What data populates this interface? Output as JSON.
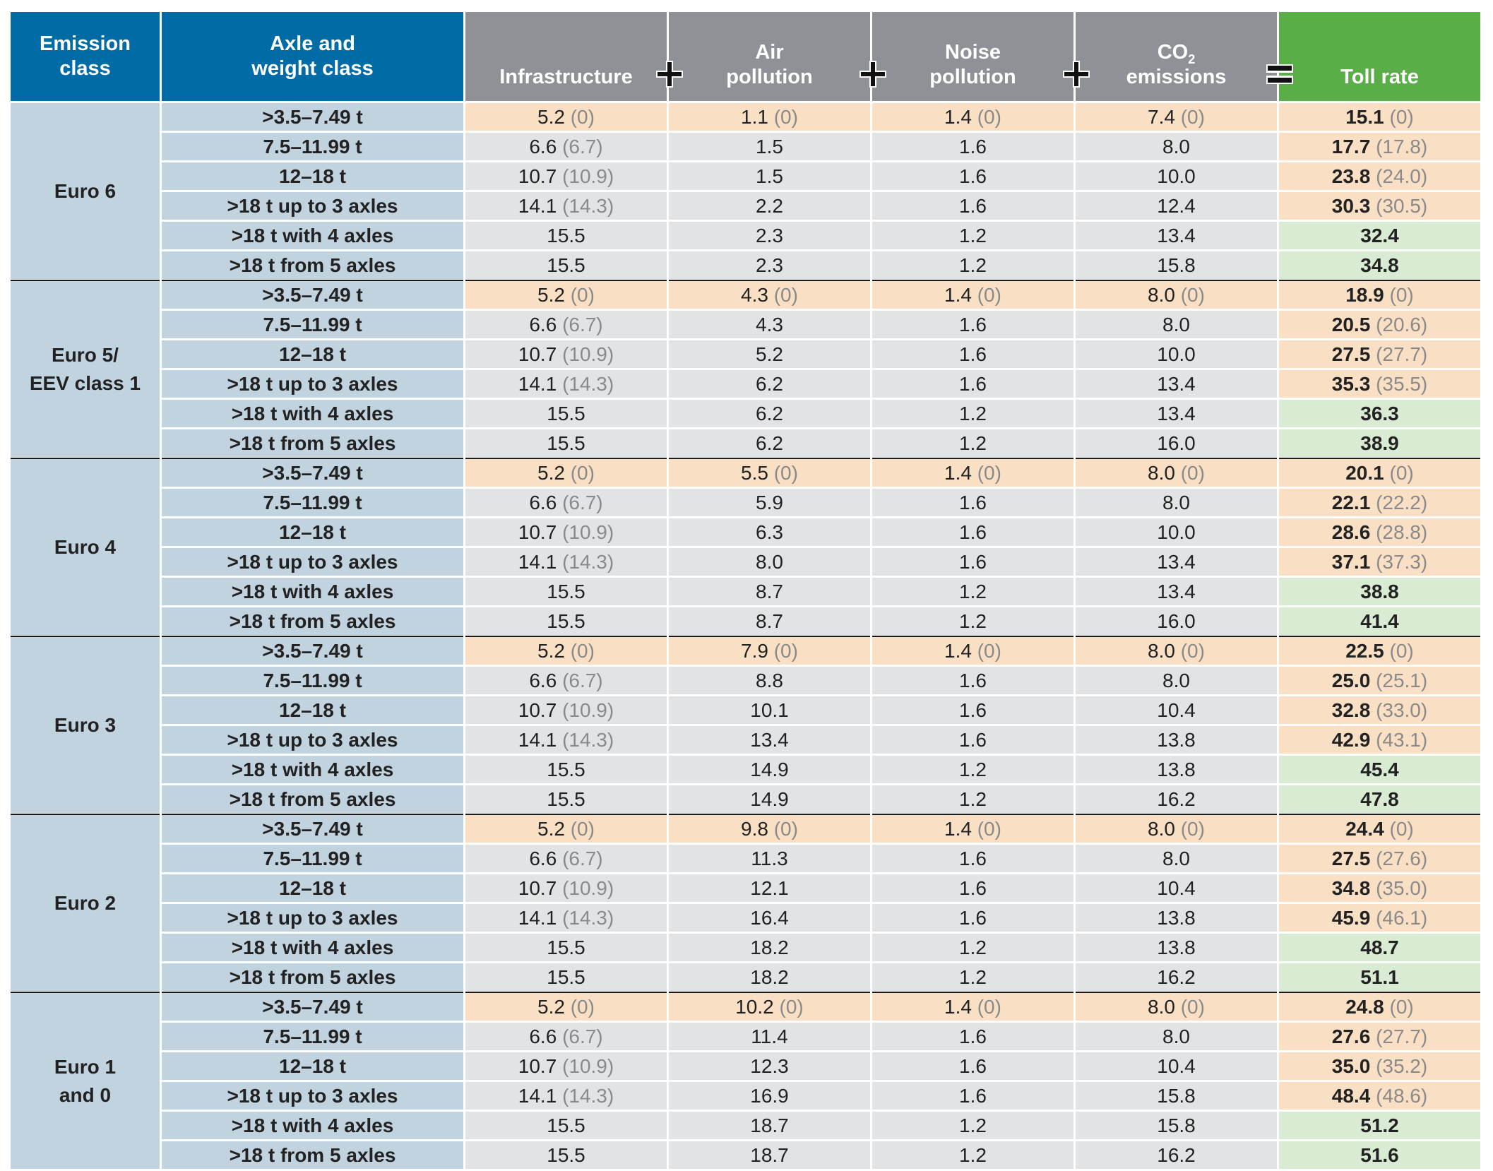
{
  "header": {
    "emission_class": [
      "Emission",
      "class"
    ],
    "axle_weight": [
      "Axle and",
      "weight class"
    ],
    "infrastructure": "Infrastructure",
    "air": [
      "Air",
      "pollution"
    ],
    "noise": [
      "Noise",
      "pollution"
    ],
    "co2": [
      "CO",
      "2",
      "emissions"
    ],
    "toll": "Toll rate",
    "operators": [
      "plus-icon",
      "plus-icon",
      "plus-icon",
      "equals-icon"
    ]
  },
  "colors": {
    "header_blue": "#006ba4",
    "header_gray": "#8e9296",
    "header_green": "#5aae48",
    "label_blue": "#c2d3e0",
    "highlight_orange": "#f9dfc4",
    "cell_gray": "#e1e3e5",
    "cell_green": "#d9ecd3"
  },
  "groups": [
    {
      "label": [
        "Euro 6"
      ],
      "rows": [
        {
          "axle": ">3.5–7.49 t",
          "infra": "5.2",
          "infra_p": "(0)",
          "air": "1.1",
          "air_p": "(0)",
          "noise": "1.4",
          "noise_p": "(0)",
          "co2": "7.4",
          "co2_p": "(0)",
          "toll": "15.1",
          "toll_p": "(0)",
          "hl": true
        },
        {
          "axle": "7.5–11.99 t",
          "infra": "6.6",
          "infra_p": "(6.7)",
          "air": "1.5",
          "air_p": "",
          "noise": "1.6",
          "noise_p": "",
          "co2": "8.0",
          "co2_p": "",
          "toll": "17.7",
          "toll_p": "(17.8)",
          "hl": false
        },
        {
          "axle": "12–18 t",
          "infra": "10.7",
          "infra_p": "(10.9)",
          "air": "1.5",
          "air_p": "",
          "noise": "1.6",
          "noise_p": "",
          "co2": "10.0",
          "co2_p": "",
          "toll": "23.8",
          "toll_p": "(24.0)",
          "hl": false
        },
        {
          "axle": ">18 t up to 3 axles",
          "infra": "14.1",
          "infra_p": "(14.3)",
          "air": "2.2",
          "air_p": "",
          "noise": "1.6",
          "noise_p": "",
          "co2": "12.4",
          "co2_p": "",
          "toll": "30.3",
          "toll_p": "(30.5)",
          "hl": false
        },
        {
          "axle": ">18 t with 4 axles",
          "infra": "15.5",
          "infra_p": "",
          "air": "2.3",
          "air_p": "",
          "noise": "1.2",
          "noise_p": "",
          "co2": "13.4",
          "co2_p": "",
          "toll": "32.4",
          "toll_p": "",
          "hl": false
        },
        {
          "axle": ">18 t from 5 axles",
          "infra": "15.5",
          "infra_p": "",
          "air": "2.3",
          "air_p": "",
          "noise": "1.2",
          "noise_p": "",
          "co2": "15.8",
          "co2_p": "",
          "toll": "34.8",
          "toll_p": "",
          "hl": false
        }
      ]
    },
    {
      "label": [
        "Euro 5/",
        "EEV class 1"
      ],
      "rows": [
        {
          "axle": ">3.5–7.49 t",
          "infra": "5.2",
          "infra_p": "(0)",
          "air": "4.3",
          "air_p": "(0)",
          "noise": "1.4",
          "noise_p": "(0)",
          "co2": "8.0",
          "co2_p": "(0)",
          "toll": "18.9",
          "toll_p": "(0)",
          "hl": true
        },
        {
          "axle": "7.5–11.99 t",
          "infra": "6.6",
          "infra_p": "(6.7)",
          "air": "4.3",
          "air_p": "",
          "noise": "1.6",
          "noise_p": "",
          "co2": "8.0",
          "co2_p": "",
          "toll": "20.5",
          "toll_p": "(20.6)",
          "hl": false
        },
        {
          "axle": "12–18 t",
          "infra": "10.7",
          "infra_p": "(10.9)",
          "air": "5.2",
          "air_p": "",
          "noise": "1.6",
          "noise_p": "",
          "co2": "10.0",
          "co2_p": "",
          "toll": "27.5",
          "toll_p": "(27.7)",
          "hl": false
        },
        {
          "axle": ">18 t up to 3 axles",
          "infra": "14.1",
          "infra_p": "(14.3)",
          "air": "6.2",
          "air_p": "",
          "noise": "1.6",
          "noise_p": "",
          "co2": "13.4",
          "co2_p": "",
          "toll": "35.3",
          "toll_p": "(35.5)",
          "hl": false
        },
        {
          "axle": ">18 t with 4 axles",
          "infra": "15.5",
          "infra_p": "",
          "air": "6.2",
          "air_p": "",
          "noise": "1.2",
          "noise_p": "",
          "co2": "13.4",
          "co2_p": "",
          "toll": "36.3",
          "toll_p": "",
          "hl": false
        },
        {
          "axle": ">18 t from 5 axles",
          "infra": "15.5",
          "infra_p": "",
          "air": "6.2",
          "air_p": "",
          "noise": "1.2",
          "noise_p": "",
          "co2": "16.0",
          "co2_p": "",
          "toll": "38.9",
          "toll_p": "",
          "hl": false
        }
      ]
    },
    {
      "label": [
        "Euro 4"
      ],
      "rows": [
        {
          "axle": ">3.5–7.49 t",
          "infra": "5.2",
          "infra_p": "(0)",
          "air": "5.5",
          "air_p": "(0)",
          "noise": "1.4",
          "noise_p": "(0)",
          "co2": "8.0",
          "co2_p": "(0)",
          "toll": "20.1",
          "toll_p": "(0)",
          "hl": true
        },
        {
          "axle": "7.5–11.99 t",
          "infra": "6.6",
          "infra_p": "(6.7)",
          "air": "5.9",
          "air_p": "",
          "noise": "1.6",
          "noise_p": "",
          "co2": "8.0",
          "co2_p": "",
          "toll": "22.1",
          "toll_p": "(22.2)",
          "hl": false
        },
        {
          "axle": "12–18 t",
          "infra": "10.7",
          "infra_p": "(10.9)",
          "air": "6.3",
          "air_p": "",
          "noise": "1.6",
          "noise_p": "",
          "co2": "10.0",
          "co2_p": "",
          "toll": "28.6",
          "toll_p": "(28.8)",
          "hl": false
        },
        {
          "axle": ">18 t up to 3 axles",
          "infra": "14.1",
          "infra_p": "(14.3)",
          "air": "8.0",
          "air_p": "",
          "noise": "1.6",
          "noise_p": "",
          "co2": "13.4",
          "co2_p": "",
          "toll": "37.1",
          "toll_p": "(37.3)",
          "hl": false
        },
        {
          "axle": ">18 t with 4 axles",
          "infra": "15.5",
          "infra_p": "",
          "air": "8.7",
          "air_p": "",
          "noise": "1.2",
          "noise_p": "",
          "co2": "13.4",
          "co2_p": "",
          "toll": "38.8",
          "toll_p": "",
          "hl": false
        },
        {
          "axle": ">18 t from 5 axles",
          "infra": "15.5",
          "infra_p": "",
          "air": "8.7",
          "air_p": "",
          "noise": "1.2",
          "noise_p": "",
          "co2": "16.0",
          "co2_p": "",
          "toll": "41.4",
          "toll_p": "",
          "hl": false
        }
      ]
    },
    {
      "label": [
        "Euro 3"
      ],
      "rows": [
        {
          "axle": ">3.5–7.49 t",
          "infra": "5.2",
          "infra_p": "(0)",
          "air": "7.9",
          "air_p": "(0)",
          "noise": "1.4",
          "noise_p": "(0)",
          "co2": "8.0",
          "co2_p": "(0)",
          "toll": "22.5",
          "toll_p": "(0)",
          "hl": true
        },
        {
          "axle": "7.5–11.99 t",
          "infra": "6.6",
          "infra_p": "(6.7)",
          "air": "8.8",
          "air_p": "",
          "noise": "1.6",
          "noise_p": "",
          "co2": "8.0",
          "co2_p": "",
          "toll": "25.0",
          "toll_p": "(25.1)",
          "hl": false
        },
        {
          "axle": "12–18 t",
          "infra": "10.7",
          "infra_p": "(10.9)",
          "air": "10.1",
          "air_p": "",
          "noise": "1.6",
          "noise_p": "",
          "co2": "10.4",
          "co2_p": "",
          "toll": "32.8",
          "toll_p": "(33.0)",
          "hl": false
        },
        {
          "axle": ">18 t up to 3 axles",
          "infra": "14.1",
          "infra_p": "(14.3)",
          "air": "13.4",
          "air_p": "",
          "noise": "1.6",
          "noise_p": "",
          "co2": "13.8",
          "co2_p": "",
          "toll": "42.9",
          "toll_p": "(43.1)",
          "hl": false
        },
        {
          "axle": ">18 t with 4 axles",
          "infra": "15.5",
          "infra_p": "",
          "air": "14.9",
          "air_p": "",
          "noise": "1.2",
          "noise_p": "",
          "co2": "13.8",
          "co2_p": "",
          "toll": "45.4",
          "toll_p": "",
          "hl": false
        },
        {
          "axle": ">18 t from 5 axles",
          "infra": "15.5",
          "infra_p": "",
          "air": "14.9",
          "air_p": "",
          "noise": "1.2",
          "noise_p": "",
          "co2": "16.2",
          "co2_p": "",
          "toll": "47.8",
          "toll_p": "",
          "hl": false
        }
      ]
    },
    {
      "label": [
        "Euro 2"
      ],
      "rows": [
        {
          "axle": ">3.5–7.49 t",
          "infra": "5.2",
          "infra_p": "(0)",
          "air": "9.8",
          "air_p": "(0)",
          "noise": "1.4",
          "noise_p": "(0)",
          "co2": "8.0",
          "co2_p": "(0)",
          "toll": "24.4",
          "toll_p": "(0)",
          "hl": true
        },
        {
          "axle": "7.5–11.99 t",
          "infra": "6.6",
          "infra_p": "(6.7)",
          "air": "11.3",
          "air_p": "",
          "noise": "1.6",
          "noise_p": "",
          "co2": "8.0",
          "co2_p": "",
          "toll": "27.5",
          "toll_p": "(27.6)",
          "hl": false
        },
        {
          "axle": "12–18 t",
          "infra": "10.7",
          "infra_p": "(10.9)",
          "air": "12.1",
          "air_p": "",
          "noise": "1.6",
          "noise_p": "",
          "co2": "10.4",
          "co2_p": "",
          "toll": "34.8",
          "toll_p": "(35.0)",
          "hl": false
        },
        {
          "axle": ">18 t up to 3 axles",
          "infra": "14.1",
          "infra_p": "(14.3)",
          "air": "16.4",
          "air_p": "",
          "noise": "1.6",
          "noise_p": "",
          "co2": "13.8",
          "co2_p": "",
          "toll": "45.9",
          "toll_p": "(46.1)",
          "hl": false
        },
        {
          "axle": ">18 t with 4 axles",
          "infra": "15.5",
          "infra_p": "",
          "air": "18.2",
          "air_p": "",
          "noise": "1.2",
          "noise_p": "",
          "co2": "13.8",
          "co2_p": "",
          "toll": "48.7",
          "toll_p": "",
          "hl": false
        },
        {
          "axle": ">18 t from 5 axles",
          "infra": "15.5",
          "infra_p": "",
          "air": "18.2",
          "air_p": "",
          "noise": "1.2",
          "noise_p": "",
          "co2": "16.2",
          "co2_p": "",
          "toll": "51.1",
          "toll_p": "",
          "hl": false
        }
      ]
    },
    {
      "label": [
        "Euro 1",
        "and 0"
      ],
      "rows": [
        {
          "axle": ">3.5–7.49 t",
          "infra": "5.2",
          "infra_p": "(0)",
          "air": "10.2",
          "air_p": "(0)",
          "noise": "1.4",
          "noise_p": "(0)",
          "co2": "8.0",
          "co2_p": "(0)",
          "toll": "24.8",
          "toll_p": "(0)",
          "hl": true
        },
        {
          "axle": "7.5–11.99 t",
          "infra": "6.6",
          "infra_p": "(6.7)",
          "air": "11.4",
          "air_p": "",
          "noise": "1.6",
          "noise_p": "",
          "co2": "8.0",
          "co2_p": "",
          "toll": "27.6",
          "toll_p": "(27.7)",
          "hl": false
        },
        {
          "axle": "12–18 t",
          "infra": "10.7",
          "infra_p": "(10.9)",
          "air": "12.3",
          "air_p": "",
          "noise": "1.6",
          "noise_p": "",
          "co2": "10.4",
          "co2_p": "",
          "toll": "35.0",
          "toll_p": "(35.2)",
          "hl": false
        },
        {
          "axle": ">18 t up to 3 axles",
          "infra": "14.1",
          "infra_p": "(14.3)",
          "air": "16.9",
          "air_p": "",
          "noise": "1.6",
          "noise_p": "",
          "co2": "15.8",
          "co2_p": "",
          "toll": "48.4",
          "toll_p": "(48.6)",
          "hl": false
        },
        {
          "axle": ">18 t with 4 axles",
          "infra": "15.5",
          "infra_p": "",
          "air": "18.7",
          "air_p": "",
          "noise": "1.2",
          "noise_p": "",
          "co2": "15.8",
          "co2_p": "",
          "toll": "51.2",
          "toll_p": "",
          "hl": false
        },
        {
          "axle": ">18 t from 5 axles",
          "infra": "15.5",
          "infra_p": "",
          "air": "18.7",
          "air_p": "",
          "noise": "1.2",
          "noise_p": "",
          "co2": "16.2",
          "co2_p": "",
          "toll": "51.6",
          "toll_p": "",
          "hl": false
        }
      ]
    }
  ]
}
